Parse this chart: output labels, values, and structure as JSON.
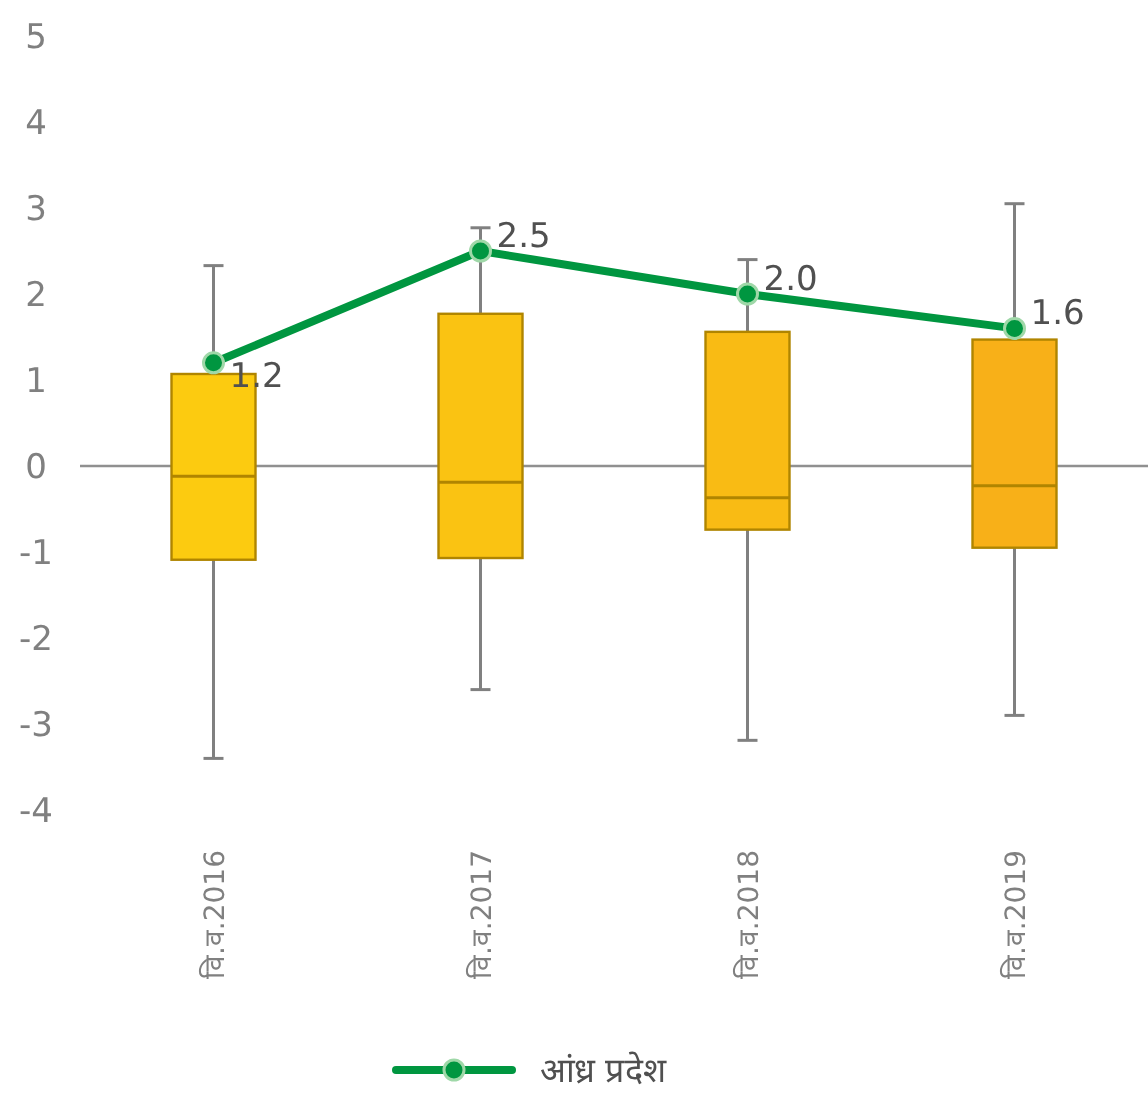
{
  "chart_data": {
    "type": "box",
    "categories": [
      "वि.व.2016",
      "वि.व.2017",
      "वि.व.2018",
      "वि.व.2019"
    ],
    "ylim": [
      -4,
      5
    ],
    "yticks": [
      -4,
      -3,
      -2,
      -1,
      0,
      1,
      2,
      3,
      4,
      5
    ],
    "ref_lines": [
      {
        "axis": "y",
        "value": 0,
        "color": "#909090"
      }
    ],
    "legend": "bottom",
    "series": [
      {
        "colors": [
          "#fccb10",
          "#fac312",
          "#f9bb14",
          "#f8b018"
        ],
        "boxes": [
          {
            "low": -3.4,
            "q1": -1.09,
            "median": -0.12,
            "q3": 1.07,
            "high": 2.33
          },
          {
            "low": -2.6,
            "q1": -1.07,
            "median": -0.19,
            "q3": 1.77,
            "high": 2.77
          },
          {
            "low": -3.19,
            "q1": -0.74,
            "median": -0.37,
            "q3": 1.56,
            "high": 2.4
          },
          {
            "low": -2.9,
            "q1": -0.95,
            "median": -0.23,
            "q3": 1.47,
            "high": 3.05
          }
        ]
      },
      {
        "type": "line",
        "name": "आंध्र प्रदेश",
        "color": "#009640",
        "values": [
          1.2,
          2.5,
          2.0,
          1.6
        ],
        "marker": "circle",
        "value_labels": [
          "1.2",
          "2.5",
          "2.0",
          "1.6"
        ]
      }
    ]
  }
}
